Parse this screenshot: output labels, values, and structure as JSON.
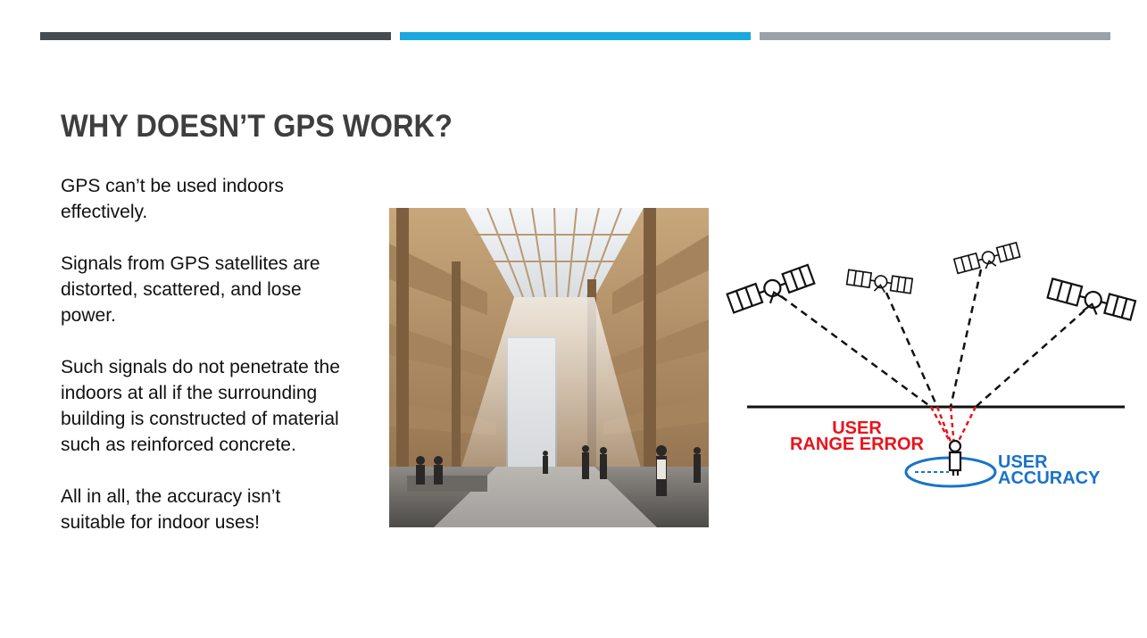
{
  "slide": {
    "title": "WHY DOESN’T GPS WORK?",
    "paragraphs": [
      "GPS can’t be used indoors effectively.",
      "Signals from GPS satellites are distorted, scattered, and lose power.",
      "Such signals  do not penetrate the indoors at all if the surrounding building is constructed of material such as reinforced concrete.",
      "All in all, the accuracy isn’t suitable for indoor uses!"
    ]
  },
  "diagram": {
    "range_error_label": [
      "USER",
      "RANGE ERROR"
    ],
    "accuracy_label": [
      "USER",
      "ACCURACY"
    ]
  },
  "colors": {
    "bar_dark": "#454c52",
    "bar_accent": "#1aa8e0",
    "bar_light": "#9aa1a8",
    "range_error": "#e8141c",
    "accuracy": "#1a73c8"
  }
}
